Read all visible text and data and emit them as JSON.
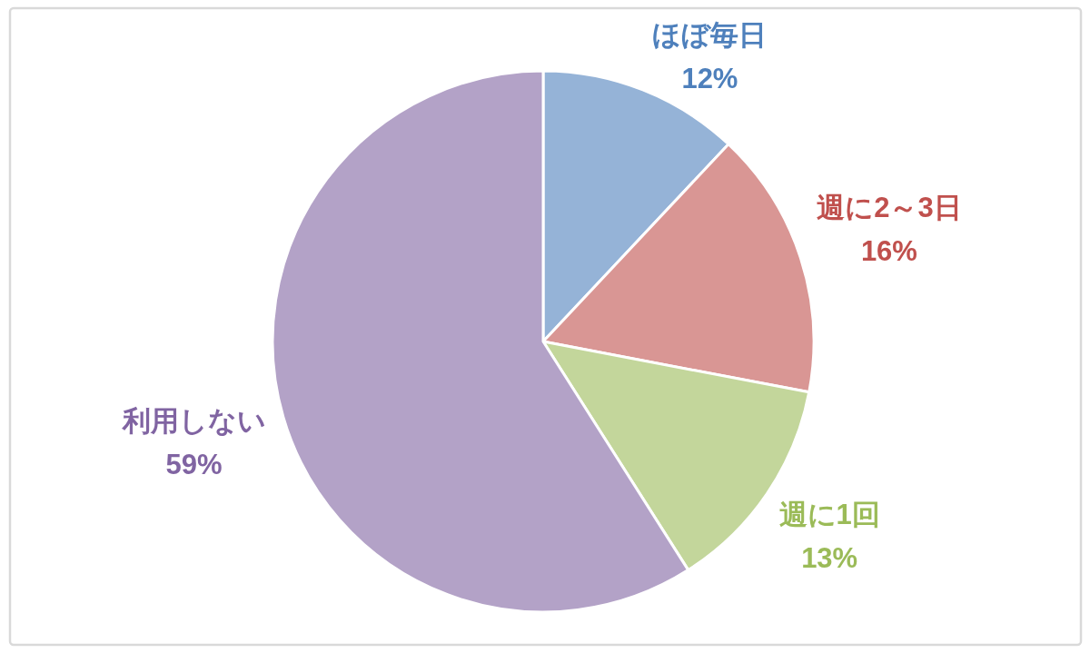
{
  "chart_data": {
    "type": "pie",
    "categories": [
      "ほぼ毎日",
      "週に2～3日",
      "週に1回",
      "利用しない"
    ],
    "values": [
      12,
      16,
      13,
      59
    ],
    "colors": [
      "#95b3d7",
      "#d99694",
      "#c3d69b",
      "#b3a2c7"
    ],
    "value_labels": [
      "12%",
      "16%",
      "13%",
      "59%"
    ]
  }
}
